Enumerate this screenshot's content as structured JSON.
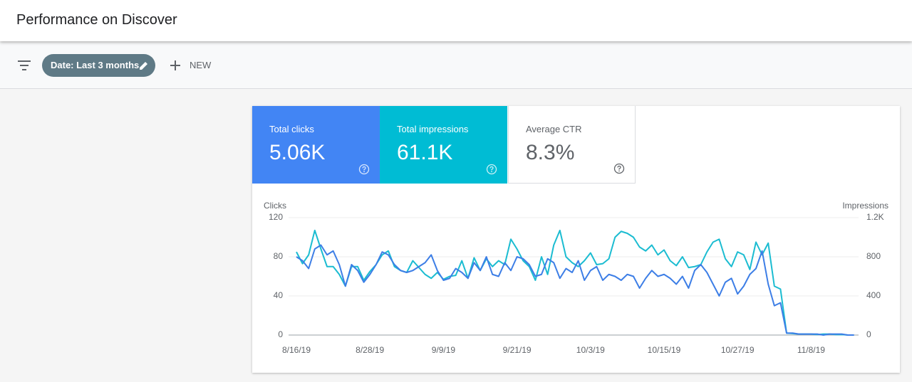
{
  "header": {
    "title": "Performance on Discover"
  },
  "toolbar": {
    "date_chip": "Date: Last 3 months",
    "new_button": "NEW"
  },
  "metrics": [
    {
      "label": "Total clicks",
      "value": "5.06K",
      "color": "#4285f4"
    },
    {
      "label": "Total impressions",
      "value": "61.1K",
      "color": "#00bcd4"
    },
    {
      "label": "Average CTR",
      "value": "8.3%",
      "color": "#ffffff"
    }
  ],
  "chart_data": {
    "type": "line",
    "x": [
      "8/16/19",
      "8/17/19",
      "8/18/19",
      "8/19/19",
      "8/20/19",
      "8/21/19",
      "8/22/19",
      "8/23/19",
      "8/24/19",
      "8/25/19",
      "8/26/19",
      "8/27/19",
      "8/28/19",
      "8/29/19",
      "8/30/19",
      "8/31/19",
      "9/1/19",
      "9/2/19",
      "9/3/19",
      "9/4/19",
      "9/5/19",
      "9/6/19",
      "9/7/19",
      "9/8/19",
      "9/9/19",
      "9/10/19",
      "9/11/19",
      "9/12/19",
      "9/13/19",
      "9/14/19",
      "9/15/19",
      "9/16/19",
      "9/17/19",
      "9/18/19",
      "9/19/19",
      "9/20/19",
      "9/21/19",
      "9/22/19",
      "9/23/19",
      "9/24/19",
      "9/25/19",
      "9/26/19",
      "9/27/19",
      "9/28/19",
      "9/29/19",
      "9/30/19",
      "10/1/19",
      "10/2/19",
      "10/3/19",
      "10/4/19",
      "10/5/19",
      "10/6/19",
      "10/7/19",
      "10/8/19",
      "10/9/19",
      "10/10/19",
      "10/11/19",
      "10/12/19",
      "10/13/19",
      "10/14/19",
      "10/15/19",
      "10/16/19",
      "10/17/19",
      "10/18/19",
      "10/19/19",
      "10/20/19",
      "10/21/19",
      "10/22/19",
      "10/23/19",
      "10/24/19",
      "10/25/19",
      "10/26/19",
      "10/27/19",
      "10/28/19",
      "10/29/19",
      "10/30/19",
      "10/31/19",
      "11/1/19",
      "11/2/19",
      "11/3/19",
      "11/4/19",
      "11/5/19",
      "11/6/19",
      "11/7/19",
      "11/8/19",
      "11/9/19",
      "11/10/19",
      "11/11/19",
      "11/12/19",
      "11/13/19",
      "11/14/19",
      "11/15/19"
    ],
    "xticks": [
      "8/16/19",
      "8/28/19",
      "9/9/19",
      "9/21/19",
      "10/3/19",
      "10/15/19",
      "10/27/19",
      "11/8/19"
    ],
    "ylim": [
      0,
      120
    ],
    "yticks": [
      0,
      40,
      80,
      120
    ],
    "y2lim": [
      0,
      1200
    ],
    "y2ticks": [
      0,
      400,
      800,
      {
        "value": 1200,
        "label": "1.2K"
      }
    ],
    "grid": true,
    "series": [
      {
        "name": "Clicks",
        "color": "#3d7ee6",
        "values": [
          80,
          76,
          68,
          88,
          92,
          82,
          86,
          72,
          50,
          72,
          66,
          54,
          62,
          72,
          85,
          82,
          72,
          66,
          64,
          66,
          70,
          74,
          82,
          66,
          56,
          58,
          68,
          64,
          58,
          74,
          66,
          80,
          62,
          60,
          74,
          66,
          80,
          78,
          72,
          60,
          62,
          78,
          74,
          58,
          68,
          64,
          76,
          56,
          66,
          70,
          56,
          62,
          60,
          56,
          62,
          60,
          48,
          58,
          66,
          60,
          62,
          58,
          52,
          60,
          48,
          66,
          72,
          64,
          52,
          40,
          54,
          58,
          42,
          50,
          62,
          68,
          86,
          52,
          30,
          33,
          2,
          2,
          1,
          1,
          1,
          1,
          0,
          1,
          1,
          1,
          0,
          0
        ]
      },
      {
        "name": "Impressions",
        "color": "#1bbcd1",
        "axis": "y2",
        "values": [
          850,
          730,
          820,
          1070,
          880,
          700,
          700,
          620,
          500,
          700,
          700,
          560,
          650,
          720,
          820,
          860,
          700,
          660,
          640,
          760,
          690,
          620,
          580,
          640,
          570,
          600,
          610,
          760,
          580,
          790,
          660,
          780,
          700,
          760,
          720,
          980,
          880,
          760,
          700,
          560,
          800,
          620,
          920,
          1070,
          800,
          740,
          700,
          760,
          840,
          720,
          730,
          780,
          1000,
          1060,
          1040,
          1000,
          900,
          860,
          920,
          820,
          870,
          760,
          710,
          800,
          690,
          700,
          720,
          850,
          950,
          980,
          780,
          700,
          850,
          820,
          670,
          950,
          820,
          940,
          500,
          470,
          20,
          15,
          10,
          10,
          10,
          5,
          10,
          10,
          5,
          5,
          0,
          0
        ]
      }
    ]
  }
}
